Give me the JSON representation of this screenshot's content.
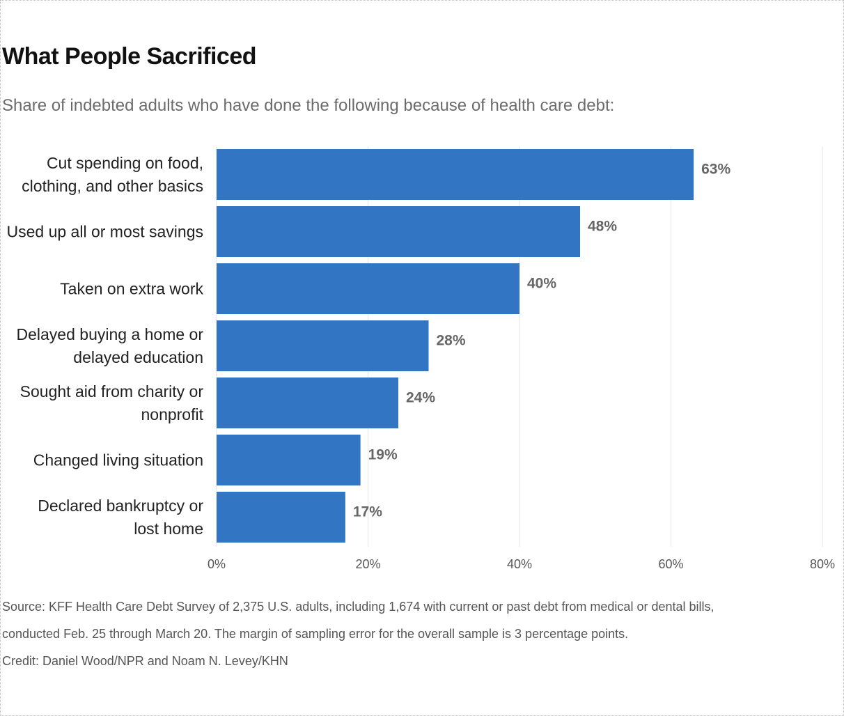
{
  "title": "What People Sacrificed",
  "subtitle": "Share of indebted adults who have done the following because of health care debt:",
  "chart_data": {
    "type": "bar",
    "orientation": "horizontal",
    "categories": [
      [
        "Cut spending on food,",
        "clothing, and other basics"
      ],
      [
        "Used up all or most savings"
      ],
      [
        "Taken on extra work"
      ],
      [
        "Delayed buying a home or",
        "delayed education"
      ],
      [
        "Sought aid from charity or",
        "nonprofit"
      ],
      [
        "Changed living situation"
      ],
      [
        "Declared bankruptcy or",
        "lost home"
      ]
    ],
    "values": [
      63,
      48,
      40,
      28,
      24,
      19,
      17
    ],
    "value_labels": [
      "63%",
      "48%",
      "40%",
      "28%",
      "24%",
      "19%",
      "17%"
    ],
    "xlim": [
      0,
      80
    ],
    "ticks": [
      0,
      20,
      40,
      60,
      80
    ],
    "tick_labels": [
      "0%",
      "20%",
      "40%",
      "60%",
      "80%"
    ],
    "grid": true,
    "colors": {
      "bar": "#3175c3",
      "value_label": "#666666",
      "category_label": "#222222",
      "tick_label": "#555555",
      "grid": "#e6e6e6"
    }
  },
  "source": "Source: KFF Health Care Debt Survey of 2,375 U.S. adults, including 1,674 with current or past debt from medical or dental bills,",
  "source_cont": "conducted Feb. 25 through March 20. The margin of sampling error for the overall sample is 3 percentage points.",
  "credit": "Credit: Daniel Wood/NPR and Noam N. Levey/KHN"
}
